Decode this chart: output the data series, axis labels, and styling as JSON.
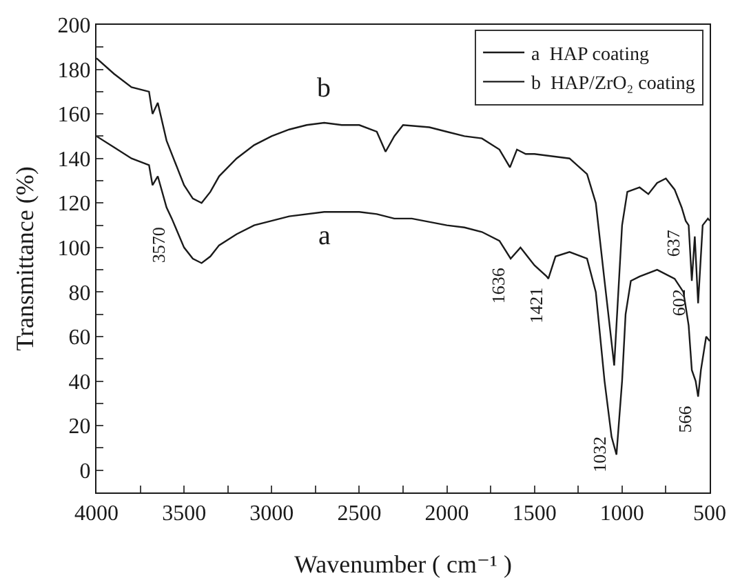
{
  "chart_data": {
    "type": "line",
    "xlabel": "Wavenumber ( cm⁻¹ )",
    "ylabel": "Transmittance (%)",
    "xlim": [
      4000,
      500
    ],
    "xticks": [
      4000,
      {
        "value": 3750,
        "label": null
      },
      3500,
      {
        "value": 3250,
        "label": null
      },
      3000,
      {
        "value": 2750,
        "label": null
      },
      2500,
      {
        "value": 2250,
        "label": null
      },
      2000,
      {
        "value": 1750,
        "label": null
      },
      1500,
      {
        "value": 1250,
        "label": null
      },
      1000,
      {
        "value": 750,
        "label": null
      },
      500
    ],
    "ylim": [
      -10,
      200
    ],
    "yticks": [
      0,
      {
        "value": 10,
        "label": null
      },
      20,
      {
        "value": 30,
        "label": null
      },
      40,
      {
        "value": 50,
        "label": null
      },
      60,
      {
        "value": 70,
        "label": null
      },
      80,
      {
        "value": 90,
        "label": null
      },
      100,
      {
        "value": 110,
        "label": null
      },
      120,
      {
        "value": 130,
        "label": null
      },
      140,
      {
        "value": 150,
        "label": null
      },
      160,
      {
        "value": 170,
        "label": null
      },
      180,
      {
        "value": 190,
        "label": null
      },
      200
    ],
    "grid": false,
    "legend": "top right",
    "marker": "none",
    "line_style": "solid",
    "series": [
      {
        "name": "a  HAP coating",
        "color": "#1a1a1a",
        "x": [
          4000,
          3900,
          3800,
          3700,
          3680,
          3650,
          3600,
          3570,
          3500,
          3450,
          3400,
          3350,
          3300,
          3200,
          3100,
          3000,
          2900,
          2700,
          2500,
          2400,
          2300,
          2200,
          2000,
          1900,
          1800,
          1700,
          1636,
          1580,
          1500,
          1430,
          1421,
          1380,
          1300,
          1200,
          1150,
          1100,
          1060,
          1032,
          1000,
          980,
          950,
          900,
          800,
          700,
          650,
          620,
          602,
          580,
          566,
          550,
          520,
          500
        ],
        "values": [
          150,
          145,
          140,
          137,
          128,
          132,
          118,
          113,
          100,
          95,
          93,
          96,
          101,
          106,
          110,
          112,
          114,
          116,
          116,
          115,
          113,
          113,
          110,
          109,
          107,
          103,
          95,
          100,
          92,
          87,
          86,
          96,
          98,
          95,
          80,
          40,
          15,
          7,
          40,
          70,
          85,
          87,
          90,
          86,
          80,
          65,
          45,
          40,
          33,
          45,
          60,
          58
        ]
      },
      {
        "name": "b  HAP/ZrO₂ coating",
        "color": "#1a1a1a",
        "x": [
          4000,
          3900,
          3800,
          3700,
          3680,
          3650,
          3600,
          3500,
          3450,
          3400,
          3350,
          3300,
          3200,
          3100,
          3000,
          2900,
          2800,
          2700,
          2600,
          2500,
          2400,
          2350,
          2300,
          2250,
          2100,
          2000,
          1900,
          1800,
          1700,
          1640,
          1600,
          1550,
          1500,
          1400,
          1300,
          1200,
          1150,
          1100,
          1045,
          1000,
          970,
          900,
          850,
          800,
          750,
          700,
          660,
          637,
          620,
          602,
          585,
          566,
          540,
          510,
          500
        ],
        "values": [
          185,
          178,
          172,
          170,
          160,
          165,
          148,
          128,
          122,
          120,
          125,
          132,
          140,
          146,
          150,
          153,
          155,
          156,
          155,
          155,
          152,
          143,
          150,
          155,
          154,
          152,
          150,
          149,
          144,
          136,
          144,
          142,
          142,
          141,
          140,
          133,
          120,
          85,
          47,
          110,
          125,
          127,
          124,
          129,
          131,
          126,
          118,
          112,
          110,
          85,
          105,
          75,
          110,
          113,
          112
        ]
      }
    ],
    "annotations": [
      {
        "text": "3570",
        "x": 3570,
        "y": 113
      },
      {
        "text": "1636",
        "x": 1636,
        "y": 95
      },
      {
        "text": "1421",
        "x": 1421,
        "y": 86
      },
      {
        "text": "1032",
        "x": 1032,
        "y": 7
      },
      {
        "text": "637",
        "x": 637,
        "y": 112
      },
      {
        "text": "602",
        "x": 602,
        "y": 85
      },
      {
        "text": "566",
        "x": 566,
        "y": 33
      },
      {
        "text": "a",
        "x": 2700,
        "y": 116
      },
      {
        "text": "b",
        "x": 2700,
        "y": 156
      }
    ]
  }
}
